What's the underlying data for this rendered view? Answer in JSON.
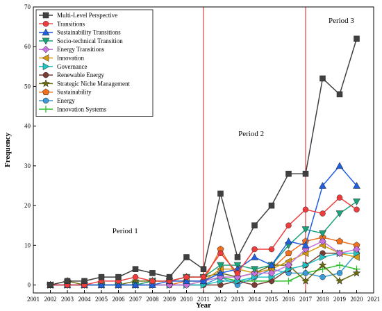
{
  "chart_data": {
    "type": "line",
    "xlabel": "Year",
    "ylabel": "Frequency",
    "xlim": [
      2001,
      2021
    ],
    "ylim": [
      -2,
      70
    ],
    "xticks": [
      "2001",
      "2002",
      "2003",
      "2004",
      "2005",
      "2006",
      "2007",
      "2008",
      "2009",
      "2010",
      "2011",
      "2012",
      "2013",
      "2014",
      "2015",
      "2016",
      "2017",
      "2018",
      "2019",
      "2020",
      "2021"
    ],
    "yticks": [
      "0",
      "10",
      "20",
      "30",
      "40",
      "50",
      "60",
      "70"
    ],
    "x": [
      2002,
      2003,
      2004,
      2005,
      2006,
      2007,
      2008,
      2009,
      2010,
      2011,
      2012,
      2013,
      2014,
      2015,
      2016,
      2017,
      2018,
      2019,
      2020
    ],
    "dividers": [
      2011,
      2017
    ],
    "divider_color": "#e04040",
    "annotations": [
      {
        "text": "Period 1",
        "x": 2006.4,
        "y": 13
      },
      {
        "text": "Period 2",
        "x": 2013.8,
        "y": 37.5
      },
      {
        "text": "Period 3",
        "x": 2019.1,
        "y": 66
      }
    ],
    "legend_position": "top-left",
    "series": [
      {
        "name": "Multi-Level Perspective",
        "color": "#404040",
        "marker": "square",
        "values": [
          0,
          1,
          1,
          2,
          2,
          4,
          3,
          2,
          7,
          4,
          23,
          7,
          15,
          20,
          28,
          28,
          52,
          48,
          62
        ]
      },
      {
        "name": "Transitions",
        "color": "#f03c3c",
        "marker": "circle",
        "values": [
          0,
          0,
          0,
          1,
          1,
          2,
          1,
          1,
          2,
          2,
          8,
          3,
          9,
          9,
          15,
          19,
          18,
          22,
          19
        ]
      },
      {
        "name": "Sustainability Transitions",
        "color": "#1f5fe0",
        "marker": "triangle-up",
        "values": [
          0,
          0,
          0,
          0,
          0,
          0,
          0,
          1,
          1,
          1,
          3,
          4,
          7,
          5,
          11,
          10,
          25,
          30,
          25
        ]
      },
      {
        "name": "Socio-technical Transition",
        "color": "#1aa37a",
        "marker": "triangle-down",
        "values": [
          0,
          0,
          0,
          0,
          0,
          0,
          1,
          1,
          2,
          2,
          5,
          5,
          4,
          5,
          10,
          14,
          13,
          18,
          21
        ]
      },
      {
        "name": "Energy Transitions",
        "color": "#c872e0",
        "marker": "diamond",
        "values": [
          0,
          0,
          0,
          0,
          0,
          0,
          0,
          0,
          0,
          1,
          2,
          2,
          3,
          3,
          5,
          9,
          11,
          8,
          9
        ]
      },
      {
        "name": "Innovation",
        "color": "#d69a10",
        "marker": "triangle-left",
        "values": [
          0,
          0,
          0,
          0,
          0,
          0,
          1,
          1,
          1,
          1,
          4,
          4,
          3,
          4,
          6,
          8,
          10,
          8,
          7
        ]
      },
      {
        "name": "Governance",
        "color": "#22c4c4",
        "marker": "triangle-right",
        "values": [
          0,
          0,
          0,
          0,
          0,
          0,
          0,
          0,
          0,
          0,
          1,
          1,
          2,
          2,
          4,
          5,
          7,
          8,
          8
        ]
      },
      {
        "name": "Renewable Energy",
        "color": "#7a3d33",
        "marker": "circle",
        "values": [
          0,
          0,
          0,
          0,
          0,
          0,
          0,
          0,
          0,
          0,
          0,
          1,
          0,
          1,
          4,
          5,
          8,
          8,
          8
        ]
      },
      {
        "name": "Strategic Niche Management",
        "color": "#6b6b10",
        "marker": "star",
        "values": [
          0,
          1,
          0,
          0,
          0,
          1,
          1,
          1,
          2,
          2,
          3,
          2,
          3,
          5,
          5,
          1,
          5,
          1,
          3
        ]
      },
      {
        "name": "Sustainability",
        "color": "#f0701e",
        "marker": "pentagon",
        "values": [
          0,
          0,
          0,
          0,
          0,
          0,
          0,
          0,
          1,
          1,
          9,
          2,
          3,
          4,
          8,
          11,
          12,
          11,
          10
        ]
      },
      {
        "name": "Energy",
        "color": "#3c9ad6",
        "marker": "circle",
        "values": [
          0,
          0,
          0,
          0,
          0,
          0,
          0,
          0,
          0,
          0,
          2,
          0,
          2,
          4,
          3,
          3,
          2,
          3,
          8
        ]
      },
      {
        "name": "Innovation Systems",
        "color": "#2fbf2f",
        "marker": "plus",
        "values": [
          0,
          0,
          0,
          0,
          0,
          0,
          0,
          0,
          0,
          1,
          2,
          1,
          1,
          1,
          1,
          3,
          4,
          5,
          4
        ]
      }
    ]
  }
}
